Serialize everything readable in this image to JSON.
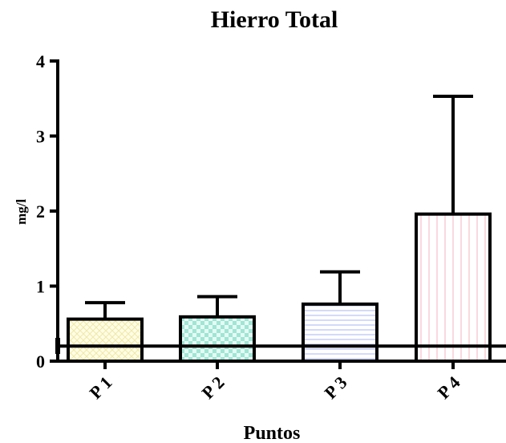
{
  "chart_data": {
    "type": "bar",
    "title": "Hierro Total",
    "xlabel": "Puntos",
    "ylabel": "mg/l",
    "categories": [
      "P1",
      "P2",
      "P3",
      "P4"
    ],
    "tick_labels": [
      "P 1",
      "P 2",
      "P 3",
      "P 4"
    ],
    "values": [
      0.56,
      0.59,
      0.76,
      1.96
    ],
    "error_upper": [
      0.78,
      0.86,
      1.19,
      3.53
    ],
    "ylim": [
      0,
      4
    ],
    "yticks": [
      "0",
      "1",
      "2",
      "3",
      "4"
    ],
    "reference_line": 0.2,
    "grid": false,
    "legend": "none",
    "colors": {
      "bars": [
        "#fffde0",
        "#c8f2e8",
        "#dfe3ff",
        "#ffe4ea"
      ],
      "patterns": [
        "crosshatch",
        "checker",
        "horizontal-lines",
        "vertical-lines"
      ],
      "stroke": "#000000"
    }
  }
}
